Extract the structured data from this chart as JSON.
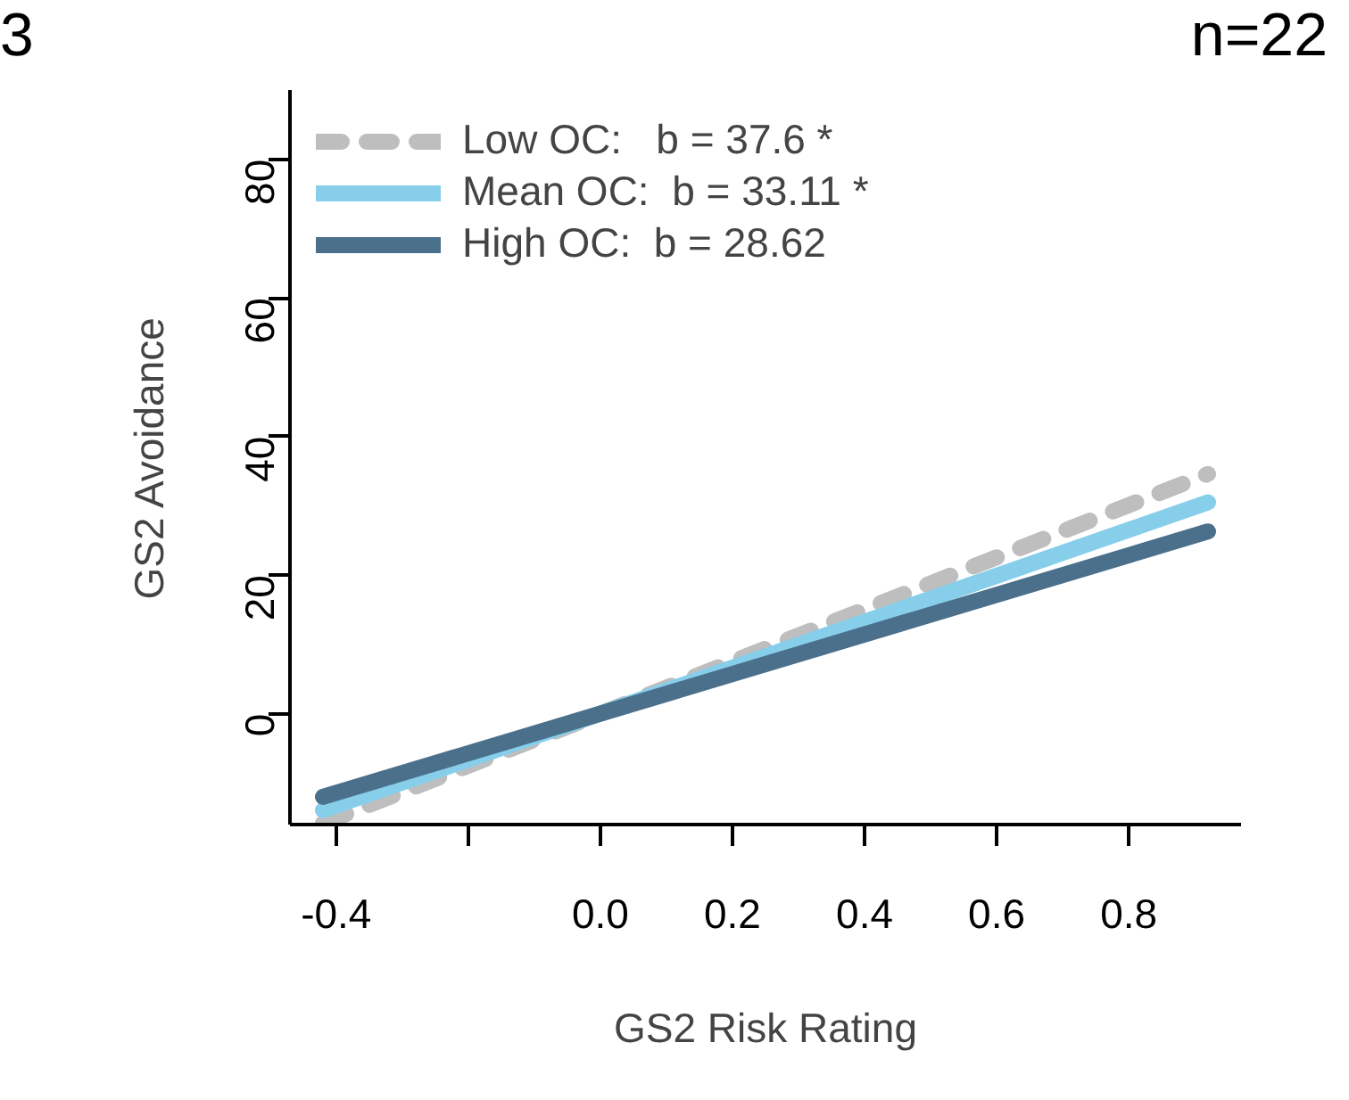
{
  "chart_data": {
    "type": "line",
    "xlabel": "GS2 Risk Rating",
    "ylabel": "GS2 Avoidance",
    "annotations": [
      "3",
      "n=22"
    ],
    "xlim": [
      -0.47,
      0.97
    ],
    "ylim": [
      -16,
      90
    ],
    "xticks": [
      -0.4,
      {
        "value": -0.2,
        "label": null
      },
      "0.0",
      0.2,
      0.4,
      0.6,
      0.8
    ],
    "yticks": [
      0,
      20,
      40,
      60,
      80
    ],
    "grid": false,
    "legend": "top left",
    "line_style": "solid",
    "marker": "none",
    "x": [
      -0.42,
      0.92
    ],
    "series": [
      {
        "name": "Low OC:   b = 37.6 *",
        "color": "#bebebe",
        "line_style": "dashed",
        "values": [
          -15.8,
          34.6
        ]
      },
      {
        "name": "Mean OC:  b = 33.11 *",
        "color": "#87ceeb",
        "values": [
          -13.9,
          30.5
        ]
      },
      {
        "name": "High OC:  b = 28.62",
        "color": "#4a708b",
        "values": [
          -12.0,
          26.3
        ]
      }
    ]
  }
}
